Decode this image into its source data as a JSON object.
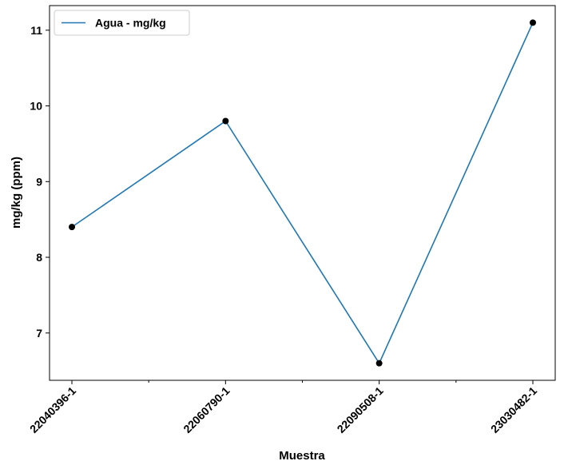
{
  "chart_data": {
    "type": "line",
    "title": "",
    "xlabel": "Muestra",
    "ylabel": "mg/kg (ppm)",
    "categories": [
      "22040396-1",
      "22060790-1",
      "22090508-1",
      "23030482-1"
    ],
    "series": [
      {
        "name": "Agua - mg/kg",
        "values": [
          8.4,
          9.8,
          6.6,
          11.1
        ],
        "color": "#1f77b4",
        "marker_color": "#000000"
      }
    ],
    "yticks": [
      7,
      8,
      9,
      10,
      11
    ],
    "ylim": [
      6.375,
      11.325
    ],
    "grid": false,
    "legend_position": "top-left"
  }
}
